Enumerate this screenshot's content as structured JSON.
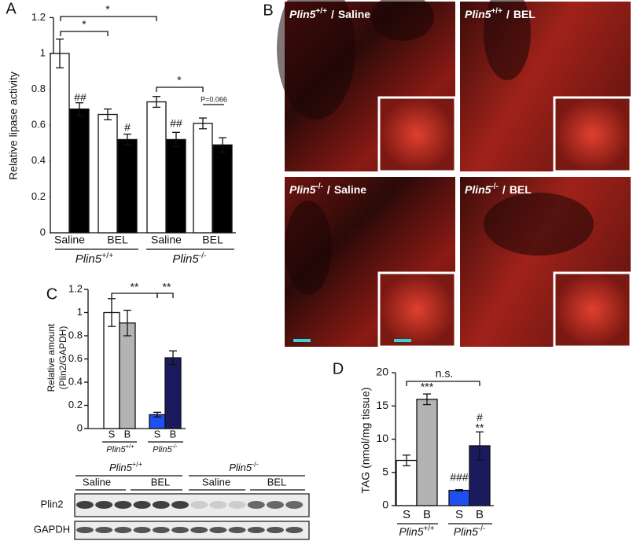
{
  "panel_labels": [
    "A",
    "B",
    "C",
    "D"
  ],
  "chart_data": [
    {
      "type": "bar",
      "ylabel": "Relative lipase activity",
      "categories": [
        "Saline",
        "BEL",
        "Saline",
        "BEL"
      ],
      "groups": [
        {
          "gene": "Plin5",
          "genotype": "+/+"
        },
        {
          "gene": "Plin5",
          "genotype": "-/-"
        }
      ],
      "series": [
        {
          "color": "#ffffff",
          "values": [
            1.0,
            0.66,
            0.73,
            0.61
          ],
          "errors": [
            0.08,
            0.03,
            0.03,
            0.03
          ]
        },
        {
          "color": "#000000",
          "values": [
            0.69,
            0.52,
            0.52,
            0.49
          ],
          "errors": [
            0.035,
            0.03,
            0.04,
            0.04
          ]
        }
      ],
      "ylim": [
        0,
        1.2
      ],
      "yticks": [
        0,
        0.2,
        0.4,
        0.6,
        0.8,
        1,
        1.2
      ],
      "annotations": [
        "*",
        "*",
        "*",
        "##",
        "#",
        "##",
        "P=0.066"
      ]
    },
    {
      "type": "bar",
      "ylabel": [
        "Relative amount",
        "(Plin2/GAPDH)"
      ],
      "categories": [
        "S",
        "B",
        "S",
        "B"
      ],
      "groups": [
        {
          "gene": "Plin5",
          "genotype": "+/+"
        },
        {
          "gene": "Plin5",
          "genotype": "-/-"
        }
      ],
      "series": [
        {
          "colors": [
            "#ffffff",
            "#b3b3b3",
            "#1f4ff0",
            "#1c1a5e"
          ],
          "values": [
            1.0,
            0.91,
            0.12,
            0.61
          ],
          "errors": [
            0.12,
            0.11,
            0.02,
            0.06
          ]
        }
      ],
      "ylim": [
        0,
        1.2
      ],
      "yticks": [
        0,
        0.2,
        0.4,
        0.6,
        0.8,
        1,
        1.2
      ],
      "annotations": [
        "**",
        "**"
      ]
    },
    {
      "type": "bar",
      "ylabel": "TAG (nmol/mg tissue)",
      "categories": [
        "S",
        "B",
        "S",
        "B"
      ],
      "groups": [
        {
          "gene": "Plin5",
          "genotype": "+/+"
        },
        {
          "gene": "Plin5",
          "genotype": "-/-"
        }
      ],
      "series": [
        {
          "colors": [
            "#ffffff",
            "#b3b3b3",
            "#1f4ff0",
            "#1c1a5e"
          ],
          "values": [
            6.8,
            16.0,
            2.3,
            9.0
          ],
          "errors": [
            0.8,
            0.8,
            0.1,
            2.1
          ]
        }
      ],
      "ylim": [
        0,
        20
      ],
      "yticks": [
        0,
        5,
        10,
        15,
        20
      ],
      "annotations": [
        "n.s.",
        "***",
        "###",
        "#",
        "**"
      ]
    }
  ],
  "micrographs": {
    "separator": "/",
    "panels": [
      {
        "gene": "Plin5",
        "genotype": "+/+",
        "treatment": "Saline"
      },
      {
        "gene": "Plin5",
        "genotype": "+/+",
        "treatment": "BEL"
      },
      {
        "gene": "Plin5",
        "genotype": "-/-",
        "treatment": "Saline"
      },
      {
        "gene": "Plin5",
        "genotype": "-/-",
        "treatment": "BEL"
      }
    ]
  },
  "blot": {
    "groups": [
      {
        "gene": "Plin5",
        "genotype": "+/+"
      },
      {
        "gene": "Plin5",
        "genotype": "-/-"
      }
    ],
    "lanes": [
      "Saline",
      "BEL",
      "Saline",
      "BEL"
    ],
    "rows": [
      "Plin2",
      "GAPDH"
    ]
  }
}
